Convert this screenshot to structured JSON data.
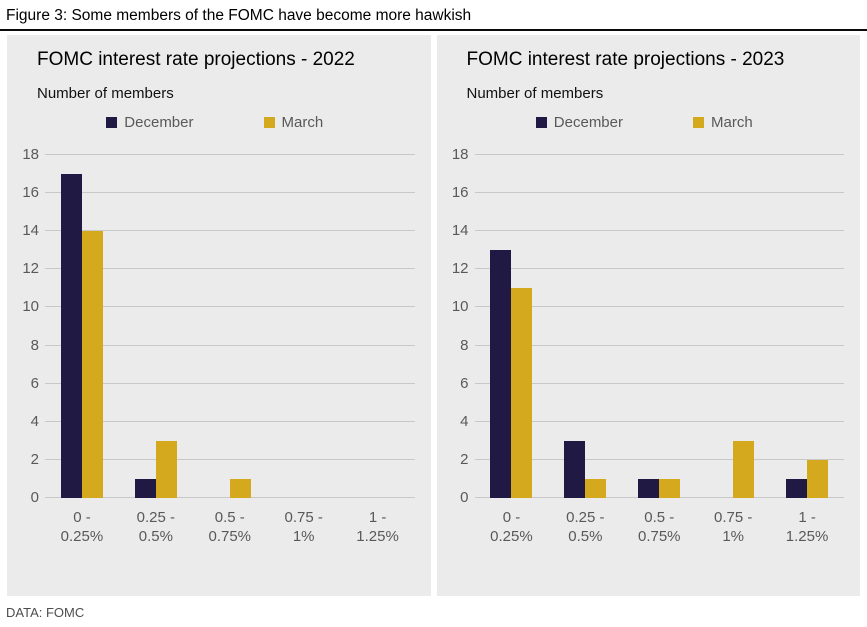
{
  "figure_title": "Figure 3: Some members of the FOMC have become more hawkish",
  "source_note": "DATA: FOMC",
  "colors": {
    "december": "#201944",
    "march": "#D5A91E",
    "panel_background": "#EBEBEB",
    "gridline": "#C8C8C8",
    "axis_text": "#595959"
  },
  "chart_data": [
    {
      "type": "bar",
      "title": "FOMC interest rate projections - 2022",
      "ylabel": "Number of members",
      "xlabel": "",
      "categories": [
        "0 - 0.25%",
        "0.25 - 0.5%",
        "0.5 - 0.75%",
        "0.75 - 1%",
        "1 - 1.25%"
      ],
      "series": [
        {
          "name": "December",
          "values": [
            17,
            1,
            0,
            0,
            0
          ]
        },
        {
          "name": "March",
          "values": [
            14,
            3,
            1,
            0,
            0
          ]
        }
      ],
      "ylim": [
        0,
        18
      ],
      "yticks": [
        0,
        2,
        4,
        6,
        8,
        10,
        12,
        14,
        16,
        18
      ],
      "grid": true,
      "legend_position": "top"
    },
    {
      "type": "bar",
      "title": "FOMC interest rate projections - 2023",
      "ylabel": "Number of members",
      "xlabel": "",
      "categories": [
        "0 - 0.25%",
        "0.25 - 0.5%",
        "0.5 - 0.75%",
        "0.75 - 1%",
        "1 - 1.25%"
      ],
      "series": [
        {
          "name": "December",
          "values": [
            13,
            3,
            1,
            0,
            1
          ]
        },
        {
          "name": "March",
          "values": [
            11,
            1,
            1,
            3,
            2
          ]
        }
      ],
      "ylim": [
        0,
        18
      ],
      "yticks": [
        0,
        2,
        4,
        6,
        8,
        10,
        12,
        14,
        16,
        18
      ],
      "grid": true,
      "legend_position": "top"
    }
  ]
}
